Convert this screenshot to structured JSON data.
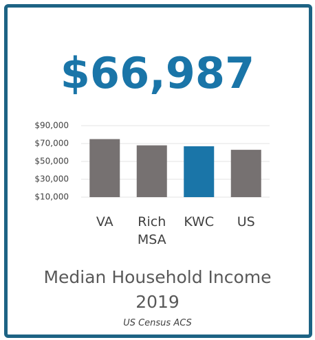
{
  "headline": "$66,987",
  "chart_data": {
    "type": "bar",
    "title": "Median Household Income 2019",
    "source": "US Census ACS",
    "categories": [
      "VA",
      "Rich MSA",
      "KWC",
      "US"
    ],
    "values": [
      75000,
      68000,
      66987,
      63000
    ],
    "colors": [
      "#767171",
      "#767171",
      "#1a75a8",
      "#767171"
    ],
    "ylim": [
      10000,
      90000
    ],
    "yticks": [
      {
        "value": 10000,
        "label": "$10,000"
      },
      {
        "value": 30000,
        "label": "$30,000"
      },
      {
        "value": 50000,
        "label": "$50,000"
      },
      {
        "value": 70000,
        "label": "$70,000"
      },
      {
        "value": 90000,
        "label": "$90,000"
      }
    ],
    "grid": true
  }
}
